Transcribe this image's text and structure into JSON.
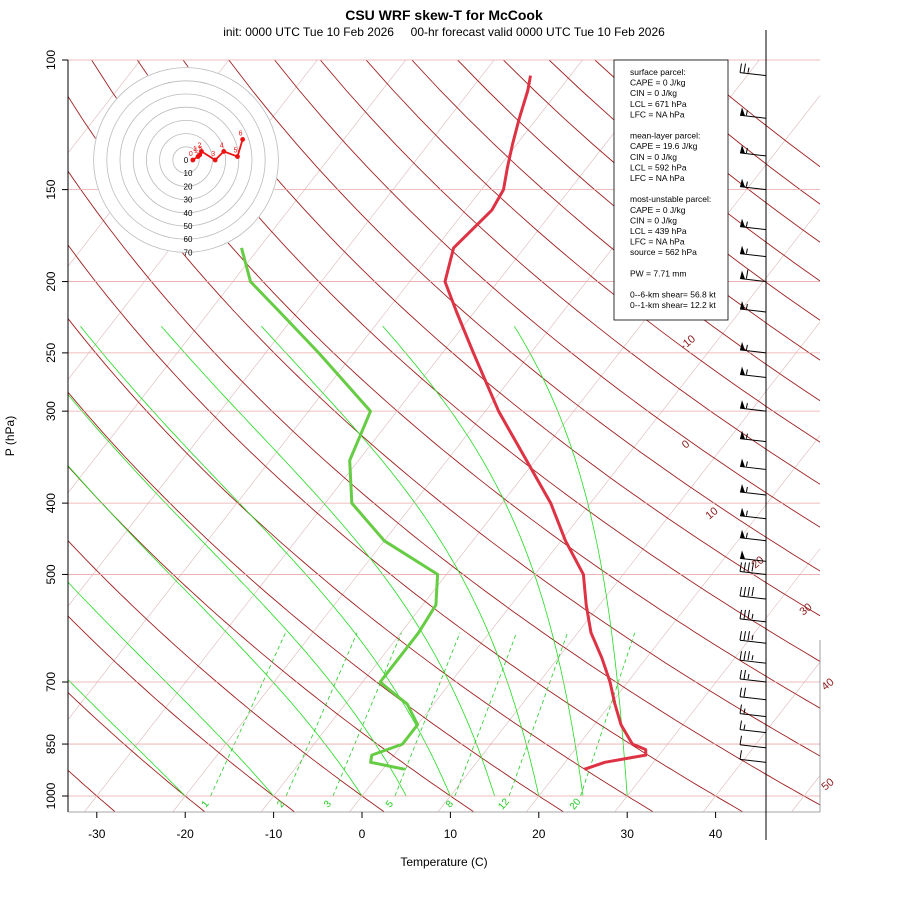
{
  "chart_data": {
    "type": "line",
    "title": "CSU WRF skew-T for McCook",
    "subtitle": "init: 0000 UTC Tue 10 Feb 2026     00-hr forecast valid 0000 UTC Tue 10 Feb 2026",
    "xlabel": "Temperature (C)",
    "ylabel": "P (hPa)",
    "x_ticks": [
      -30,
      -20,
      -10,
      0,
      10,
      20,
      30,
      40
    ],
    "y_ticks": [
      100,
      150,
      200,
      250,
      300,
      400,
      500,
      700,
      850,
      1000
    ],
    "xlim": [
      -33,
      45
    ],
    "ylim": [
      1000,
      100
    ],
    "y_scale": "log-pressure",
    "isotherm_labels": [
      "-10",
      "0",
      "10",
      "20",
      "30",
      "40",
      "50"
    ],
    "mixing_ratio_labels": [
      "1",
      "2",
      "3",
      "5",
      "8",
      "12",
      "20"
    ],
    "series": [
      {
        "name": "",
        "color": "#dd3344",
        "points": [
          {
            "p": 920,
            "t": 22.8
          },
          {
            "p": 900,
            "t": 24.5
          },
          {
            "p": 880,
            "t": 28.5
          },
          {
            "p": 865,
            "t": 28.0
          },
          {
            "p": 850,
            "t": 26.0
          },
          {
            "p": 800,
            "t": 23.0
          },
          {
            "p": 750,
            "t": 20.5
          },
          {
            "p": 700,
            "t": 18.0
          },
          {
            "p": 650,
            "t": 15.0
          },
          {
            "p": 600,
            "t": 11.5
          },
          {
            "p": 550,
            "t": 8.5
          },
          {
            "p": 500,
            "t": 5.5
          },
          {
            "p": 450,
            "t": 0.5
          },
          {
            "p": 400,
            "t": -4.5
          },
          {
            "p": 350,
            "t": -11.0
          },
          {
            "p": 300,
            "t": -18.5
          },
          {
            "p": 250,
            "t": -26.5
          },
          {
            "p": 220,
            "t": -32.0
          },
          {
            "p": 200,
            "t": -36.0
          },
          {
            "p": 180,
            "t": -38.0
          },
          {
            "p": 160,
            "t": -37.0
          },
          {
            "p": 150,
            "t": -37.5
          },
          {
            "p": 140,
            "t": -39.0
          },
          {
            "p": 130,
            "t": -40.5
          },
          {
            "p": 120,
            "t": -42.0
          },
          {
            "p": 110,
            "t": -43.5
          },
          {
            "p": 105,
            "t": -44.5
          }
        ]
      },
      {
        "name": "",
        "color": "#66cc44",
        "points": [
          {
            "p": 920,
            "t": 2.5
          },
          {
            "p": 900,
            "t": -2.0
          },
          {
            "p": 880,
            "t": -2.5
          },
          {
            "p": 850,
            "t": 0.0
          },
          {
            "p": 800,
            "t": 0.0
          },
          {
            "p": 750,
            "t": -3.0
          },
          {
            "p": 720,
            "t": -6.0
          },
          {
            "p": 700,
            "t": -8.0
          },
          {
            "p": 650,
            "t": -8.0
          },
          {
            "p": 600,
            "t": -8.0
          },
          {
            "p": 550,
            "t": -8.5
          },
          {
            "p": 500,
            "t": -11.0
          },
          {
            "p": 450,
            "t": -20.0
          },
          {
            "p": 400,
            "t": -27.0
          },
          {
            "p": 350,
            "t": -31.0
          },
          {
            "p": 300,
            "t": -33.0
          },
          {
            "p": 250,
            "t": -44.0
          },
          {
            "p": 220,
            "t": -52.0
          },
          {
            "p": 200,
            "t": -58.0
          },
          {
            "p": 180,
            "t": -62.0
          }
        ]
      }
    ],
    "legend_box": [
      "surface parcel:",
      "CAPE = 0 J/kg",
      "CIN = 0 J/kg",
      "LCL = 671 hPa",
      "LFC = NA hPa",
      "",
      "mean-layer parcel:",
      "CAPE = 19.6 J/kg",
      "CIN = 0 J/kg",
      "LCL = 592 hPa",
      "LFC = NA hPa",
      "",
      "most-unstable parcel:",
      "CAPE = 0 J/kg",
      "CIN = 0 J/kg",
      "LCL = 439 hPa",
      "LFC = NA hPa",
      "source = 562 hPa",
      "",
      "PW =  7.71 mm",
      "",
      "0--6-km shear= 56.8 kt",
      "0--1-km shear= 12.2 kt"
    ],
    "hodograph": {
      "ring_labels": [
        "0",
        "10",
        "20",
        "30",
        "40",
        "50",
        "60",
        "70"
      ],
      "point_labels": [
        "0",
        "1",
        "1.5",
        "2",
        "3",
        "4",
        "5",
        "6"
      ],
      "points": [
        {
          "u": 4,
          "v": 0
        },
        {
          "u": 7,
          "v": 2
        },
        {
          "u": 8,
          "v": 3
        },
        {
          "u": 9,
          "v": 5
        },
        {
          "u": 17,
          "v": 0
        },
        {
          "u": 22,
          "v": 5
        },
        {
          "u": 30,
          "v": 2
        },
        {
          "u": 33,
          "v": 12
        }
      ]
    },
    "wind_barbs": [
      {
        "p": 105,
        "speed": 25
      },
      {
        "p": 120,
        "speed": 55
      },
      {
        "p": 135,
        "speed": 55
      },
      {
        "p": 150,
        "speed": 55
      },
      {
        "p": 170,
        "speed": 55
      },
      {
        "p": 185,
        "speed": 55
      },
      {
        "p": 200,
        "speed": 60
      },
      {
        "p": 220,
        "speed": 55
      },
      {
        "p": 250,
        "speed": 55
      },
      {
        "p": 270,
        "speed": 55
      },
      {
        "p": 300,
        "speed": 55
      },
      {
        "p": 330,
        "speed": 55
      },
      {
        "p": 360,
        "speed": 55
      },
      {
        "p": 390,
        "speed": 55
      },
      {
        "p": 420,
        "speed": 55
      },
      {
        "p": 450,
        "speed": 55
      },
      {
        "p": 480,
        "speed": 50
      },
      {
        "p": 500,
        "speed": 40
      },
      {
        "p": 540,
        "speed": 40
      },
      {
        "p": 580,
        "speed": 35
      },
      {
        "p": 620,
        "speed": 35
      },
      {
        "p": 660,
        "speed": 35
      },
      {
        "p": 700,
        "speed": 25
      },
      {
        "p": 740,
        "speed": 20
      },
      {
        "p": 780,
        "speed": 15
      },
      {
        "p": 820,
        "speed": 15
      },
      {
        "p": 860,
        "speed": 10
      },
      {
        "p": 900,
        "speed": 10
      }
    ]
  }
}
